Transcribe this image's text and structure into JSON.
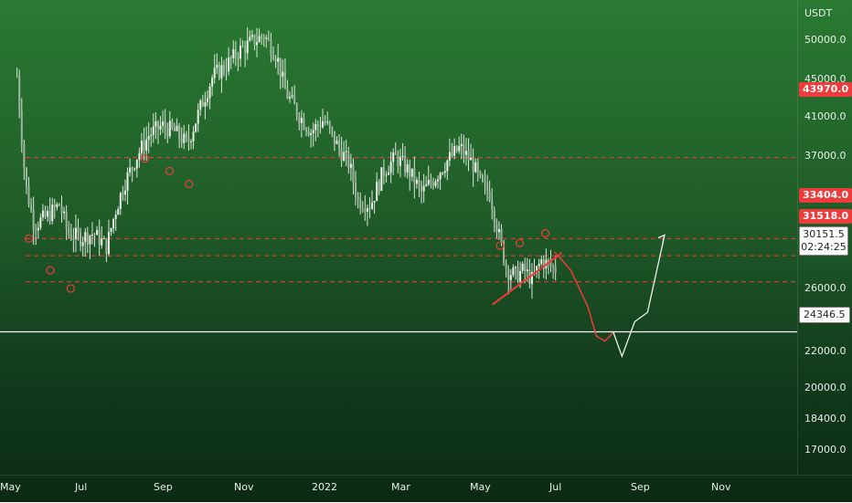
{
  "chart_data": {
    "type": "candlestick",
    "symbol_quote": "USDT",
    "y_scale": "log",
    "ylim": [
      15000,
      75000
    ],
    "y_axis": {
      "unit": "USDT",
      "ticks": [
        "50000.0",
        "45000.0",
        "41000.0",
        "37000.0",
        "26000.0",
        "22000.0",
        "20000.0",
        "18400.0",
        "17000.0"
      ]
    },
    "x_axis": {
      "ticks": [
        "May",
        "Jul",
        "Sep",
        "Nov",
        "2022",
        "Mar",
        "May",
        "Jul",
        "Sep",
        "Nov"
      ]
    },
    "levels": [
      {
        "name": "resistance-43970",
        "value": 43970,
        "label": "43970.0",
        "style": "dashed",
        "color": "#ef3b3b"
      },
      {
        "name": "resistance-33404",
        "value": 33404,
        "label": "33404.0",
        "style": "dashed",
        "color": "#ef3b3b"
      },
      {
        "name": "resistance-31518",
        "value": 31518,
        "label": "31518.0",
        "style": "dashed",
        "color": "#ef3b3b"
      },
      {
        "name": "support-28850",
        "value": 28850,
        "label": "",
        "style": "dashed",
        "color": "#ef3b3b"
      },
      {
        "name": "support-24346",
        "value": 24346.5,
        "label": "24346.5",
        "style": "solid",
        "color": "#ffffff"
      }
    ],
    "current_price": {
      "value": "30151.5",
      "countdown": "02:24:25"
    },
    "projection": [
      {
        "x": 0.655,
        "y": 31518
      },
      {
        "x": 0.67,
        "y": 30000
      },
      {
        "x": 0.69,
        "y": 26500
      },
      {
        "x": 0.7,
        "y": 24000
      },
      {
        "x": 0.71,
        "y": 23600
      },
      {
        "x": 0.72,
        "y": 24300
      },
      {
        "x": 0.73,
        "y": 22400
      },
      {
        "x": 0.745,
        "y": 25200
      },
      {
        "x": 0.76,
        "y": 26000
      },
      {
        "x": 0.78,
        "y": 33800
      }
    ],
    "closes": [
      [
        0.02,
        58000
      ],
      [
        0.03,
        40000
      ],
      [
        0.04,
        35000
      ],
      [
        0.055,
        36000
      ],
      [
        0.07,
        37500
      ],
      [
        0.08,
        34000
      ],
      [
        0.095,
        33500
      ],
      [
        0.11,
        34000
      ],
      [
        0.125,
        32500
      ],
      [
        0.135,
        36500
      ],
      [
        0.145,
        40000
      ],
      [
        0.16,
        44000
      ],
      [
        0.175,
        47500
      ],
      [
        0.19,
        49000
      ],
      [
        0.205,
        48000
      ],
      [
        0.22,
        46000
      ],
      [
        0.235,
        52000
      ],
      [
        0.25,
        58000
      ],
      [
        0.265,
        60000
      ],
      [
        0.28,
        63000
      ],
      [
        0.295,
        65000
      ],
      [
        0.31,
        66500
      ],
      [
        0.325,
        62000
      ],
      [
        0.335,
        55000
      ],
      [
        0.35,
        51000
      ],
      [
        0.365,
        48000
      ],
      [
        0.38,
        50000
      ],
      [
        0.395,
        46000
      ],
      [
        0.41,
        43000
      ],
      [
        0.42,
        38000
      ],
      [
        0.435,
        37500
      ],
      [
        0.45,
        42000
      ],
      [
        0.465,
        44000
      ],
      [
        0.48,
        42000
      ],
      [
        0.495,
        39000
      ],
      [
        0.51,
        41000
      ],
      [
        0.525,
        43500
      ],
      [
        0.54,
        45500
      ],
      [
        0.555,
        43000
      ],
      [
        0.565,
        40000
      ],
      [
        0.575,
        39000
      ],
      [
        0.585,
        34000
      ],
      [
        0.595,
        30000
      ],
      [
        0.605,
        29500
      ],
      [
        0.615,
        30000
      ],
      [
        0.625,
        29000
      ],
      [
        0.635,
        31000
      ],
      [
        0.645,
        30500
      ],
      [
        0.652,
        30150
      ]
    ]
  },
  "labels": {
    "level_43970": "43970.0",
    "level_33404": "33404.0",
    "level_31518": "31518.0",
    "level_24346": "24346.5",
    "price_now": "30151.5",
    "countdown": "02:24:25"
  }
}
